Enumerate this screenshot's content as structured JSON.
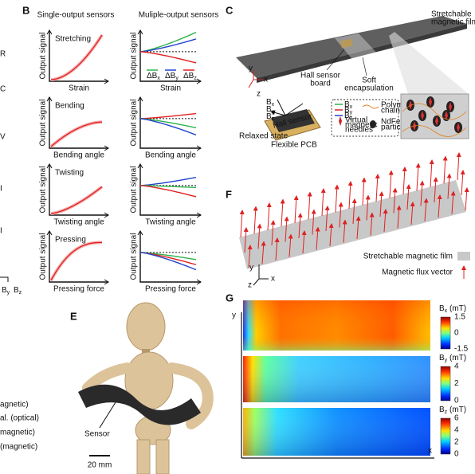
{
  "left_edge": {
    "letters": [
      "R",
      "C",
      "V",
      "I",
      "I"
    ],
    "b": "B",
    "sub_y": "y",
    "sub_z": "z",
    "lines": [
      "agnetic)",
      "al. (optical)",
      "magnetic)",
      "(magnetic)"
    ]
  },
  "panel_b": {
    "label": "B",
    "col_headers": [
      "Single-output sensors",
      "Muliple-output sensors"
    ],
    "y_label": "Output signal",
    "rows": [
      {
        "title": "Stretching",
        "x_label": "Strain"
      },
      {
        "title": "Bending",
        "x_label": "Bending angle"
      },
      {
        "title": "Twisting",
        "x_label": "Twisting angle"
      },
      {
        "title": "Pressing",
        "x_label": "Pressing force"
      }
    ],
    "legend": [
      {
        "sym": "ΔB",
        "sub": "x"
      },
      {
        "sym": "ΔB",
        "sub": "y"
      },
      {
        "sym": "ΔB",
        "sub": "z"
      }
    ]
  },
  "panel_c": {
    "label": "C",
    "film": [
      "Stretchable",
      "magnetic film"
    ],
    "hall_board": [
      "Hall sensor",
      "board"
    ],
    "encapsulation": [
      "Soft",
      "encapsulation"
    ],
    "relaxed": "Relaxed state",
    "pcb": "Flexible PCB",
    "hall_sensor": "Hall sensor",
    "needles": [
      "Virtual",
      "magnetic",
      "needles"
    ],
    "polymer": [
      "Polyme",
      "chain"
    ],
    "particle": [
      "NdFeB",
      "particle"
    ],
    "axes": [
      "x",
      "y",
      "z"
    ],
    "b": "B",
    "subs": [
      "x",
      "y",
      "z"
    ]
  },
  "panel_e": {
    "label": "E",
    "sensor": "Sensor",
    "scale": "20 mm"
  },
  "panel_f": {
    "label": "F",
    "film": "Stretchable magnetic film",
    "vector": "Magnetic flux vector",
    "axes": [
      "y",
      "z",
      "x"
    ]
  },
  "panel_g": {
    "label": "G",
    "axes": [
      "y",
      "x"
    ],
    "maps": [
      {
        "b": "B",
        "sub": "x",
        "unit": "(mT)",
        "ticks": [
          "1.5",
          "0",
          "-1.5"
        ]
      },
      {
        "b": "B",
        "sub": "y",
        "unit": "(mT)",
        "ticks": [
          "4",
          "2",
          "0"
        ]
      },
      {
        "b": "B",
        "sub": "z",
        "unit": "(mT)",
        "ticks": [
          "6",
          "4",
          "2",
          "0"
        ]
      }
    ]
  }
}
